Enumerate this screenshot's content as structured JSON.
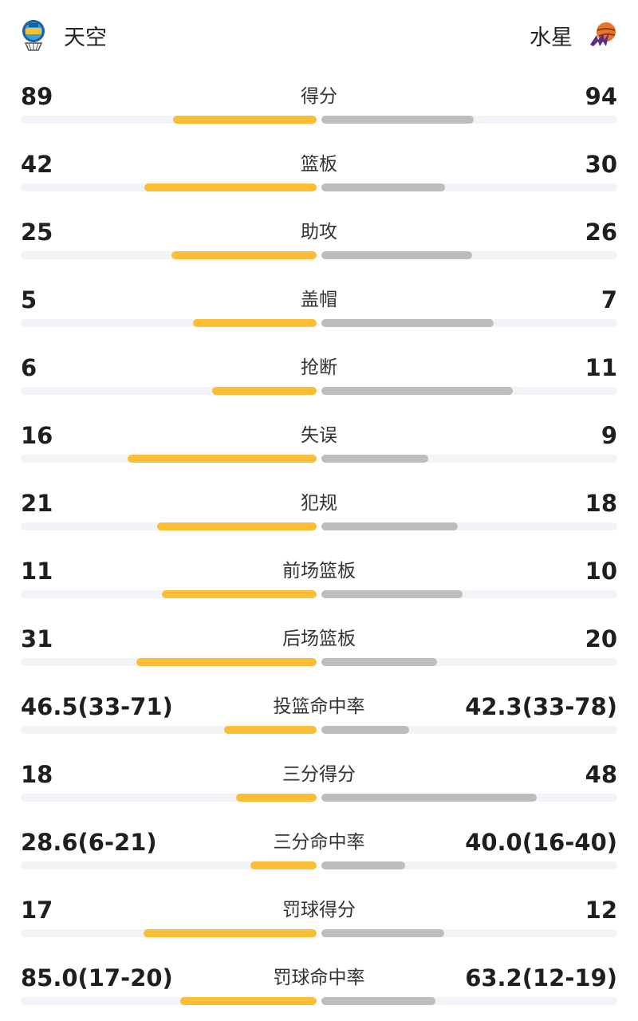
{
  "header": {
    "left_team": {
      "name": "天空",
      "logo": "sky-team-logo-icon"
    },
    "right_team": {
      "name": "水星",
      "logo": "mercury-team-logo-icon"
    }
  },
  "colors": {
    "left_bar": "#fbbd35",
    "right_bar": "#bdbdbd",
    "track": "#f1f3f7"
  },
  "stats": [
    {
      "label": "得分",
      "left": "89",
      "right": "94",
      "left_share": 0.486,
      "right_share": 0.514
    },
    {
      "label": "篮板",
      "left": "42",
      "right": "30",
      "left_share": 0.583,
      "right_share": 0.417
    },
    {
      "label": "助攻",
      "left": "25",
      "right": "26",
      "left_share": 0.49,
      "right_share": 0.51
    },
    {
      "label": "盖帽",
      "left": "5",
      "right": "7",
      "left_share": 0.417,
      "right_share": 0.583
    },
    {
      "label": "抢断",
      "left": "6",
      "right": "11",
      "left_share": 0.353,
      "right_share": 0.647
    },
    {
      "label": "失误",
      "left": "16",
      "right": "9",
      "left_share": 0.64,
      "right_share": 0.36
    },
    {
      "label": "犯规",
      "left": "21",
      "right": "18",
      "left_share": 0.538,
      "right_share": 0.462
    },
    {
      "label": "前场篮板",
      "left": "11",
      "right": "10",
      "left_share": 0.524,
      "right_share": 0.476
    },
    {
      "label": "后场篮板",
      "left": "31",
      "right": "20",
      "left_share": 0.608,
      "right_share": 0.392
    },
    {
      "label": "投篮命中率",
      "left": "46.5(33-71)",
      "right": "42.3(33-78)",
      "left_share": 0.314,
      "right_share": 0.296
    },
    {
      "label": "三分得分",
      "left": "18",
      "right": "48",
      "left_share": 0.273,
      "right_share": 0.727
    },
    {
      "label": "三分命中率",
      "left": "28.6(6-21)",
      "right": "40.0(16-40)",
      "left_share": 0.224,
      "right_share": 0.283
    },
    {
      "label": "罚球得分",
      "left": "17",
      "right": "12",
      "left_share": 0.586,
      "right_share": 0.414
    },
    {
      "label": "罚球命中率",
      "left": "85.0(17-20)",
      "right": "63.2(12-19)",
      "left_share": 0.462,
      "right_share": 0.386
    }
  ]
}
